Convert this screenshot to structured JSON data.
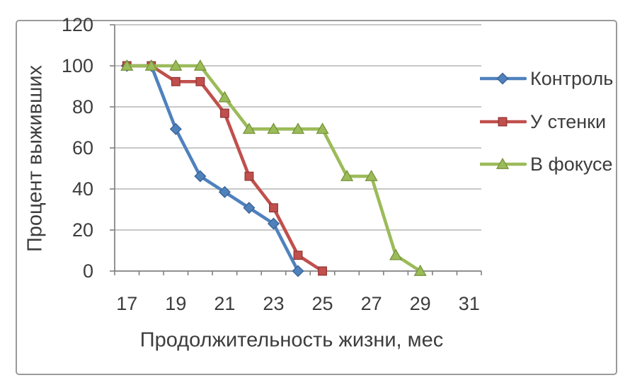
{
  "chart_data": {
    "type": "line",
    "title": "",
    "xlabel": "Продолжительность жизни, мес",
    "ylabel": "Процент выживших",
    "x_range": [
      17,
      31
    ],
    "x_tick_labels": [
      17,
      19,
      21,
      23,
      25,
      27,
      29,
      31
    ],
    "ylim": [
      0,
      120
    ],
    "y_ticks": [
      0,
      20,
      40,
      60,
      80,
      100,
      120
    ],
    "grid": "horizontal",
    "legend_position": "right",
    "axis_color": "#808080",
    "grid_color": "#a6a6a6",
    "text_color": "#3d3d3d",
    "frame_color": "#9a9a9a",
    "series": [
      {
        "name": "Контроль",
        "color": "#4F81BD",
        "marker_edge": "#3A6293",
        "marker": "diamond",
        "points": [
          [
            17,
            100
          ],
          [
            18,
            100
          ],
          [
            19,
            69.2
          ],
          [
            20,
            46.2
          ],
          [
            21,
            38.5
          ],
          [
            22,
            30.8
          ],
          [
            23,
            23.1
          ],
          [
            24,
            0
          ]
        ]
      },
      {
        "name": "У стенки",
        "color": "#C0504D",
        "marker_edge": "#943634",
        "marker": "square",
        "points": [
          [
            17,
            100
          ],
          [
            18,
            100
          ],
          [
            19,
            92.3
          ],
          [
            20,
            92.3
          ],
          [
            21,
            76.9
          ],
          [
            22,
            46.2
          ],
          [
            23,
            30.8
          ],
          [
            24,
            7.7
          ],
          [
            25,
            0
          ]
        ]
      },
      {
        "name": "В фокусе",
        "color": "#9BBB59",
        "marker_edge": "#77933C",
        "marker": "triangle",
        "points": [
          [
            17,
            100
          ],
          [
            18,
            100
          ],
          [
            19,
            100
          ],
          [
            20,
            100
          ],
          [
            21,
            84.6
          ],
          [
            22,
            69.2
          ],
          [
            23,
            69.2
          ],
          [
            24,
            69.2
          ],
          [
            25,
            69.2
          ],
          [
            26,
            46.2
          ],
          [
            27,
            46.2
          ],
          [
            28,
            7.7
          ],
          [
            29,
            0
          ]
        ]
      }
    ]
  }
}
